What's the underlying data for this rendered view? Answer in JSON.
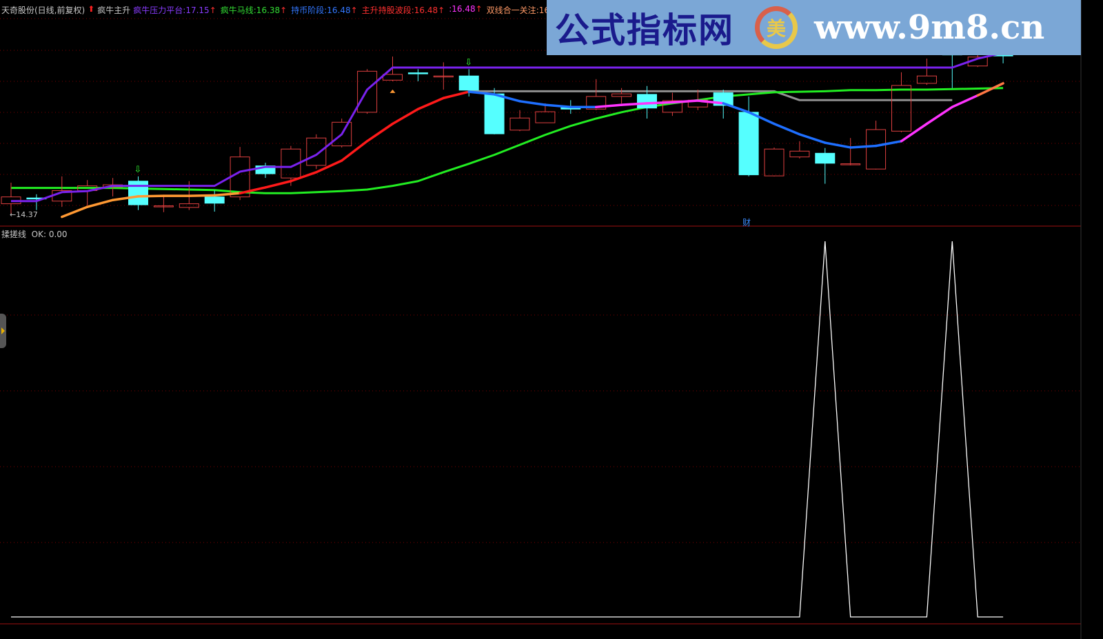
{
  "header": {
    "stock": "天奇股份(日线,前复权)",
    "indicator": "疯牛主升",
    "items": [
      {
        "label": "疯牛压力平台",
        "value": "17.15",
        "color": "#8a3cff"
      },
      {
        "label": "疯牛马线",
        "value": "16.38",
        "color": "#33dd33"
      },
      {
        "label": "持币阶段",
        "value": "16.48",
        "color": "#3377ff"
      },
      {
        "label": "主升持股波段",
        "value": "16.48",
        "color": "#ff3030"
      },
      {
        "label": "",
        "value": "16.48",
        "color": "#ff33ff"
      },
      {
        "label": "双线合一关注",
        "value": "16.4",
        "color": "#ff9966"
      }
    ],
    "arrow_up": "↑"
  },
  "watermark": {
    "cn": "公式指标网",
    "logo": "美",
    "url": "www.9m8.cn"
  },
  "low_label": "←14.37",
  "event_marker": "财",
  "sub_panel": {
    "title": "揉搓线",
    "readout": "OK: 0.00"
  },
  "colors": {
    "up": "#e04040",
    "down": "#55ffff",
    "grid": "#800000",
    "platform": "#7a22ee",
    "horse": "#22ee22",
    "gray": "#909090"
  },
  "chart_data": [
    {
      "type": "candlestick",
      "title": "天奇股份(日线,前复权)",
      "ohlc": [
        [
          14.56,
          14.69,
          14.96,
          14.37
        ],
        [
          14.67,
          14.66,
          14.74,
          14.44
        ],
        [
          14.61,
          14.81,
          15.08,
          14.5
        ],
        [
          14.81,
          14.9,
          15.01,
          14.53
        ],
        [
          14.88,
          14.92,
          15.05,
          14.7
        ],
        [
          14.99,
          14.54,
          15.08,
          14.44
        ],
        [
          14.52,
          14.52,
          14.7,
          14.4
        ],
        [
          14.49,
          14.56,
          14.99,
          14.44
        ],
        [
          14.69,
          14.57,
          14.81,
          14.41
        ],
        [
          14.69,
          15.45,
          15.64,
          14.63
        ],
        [
          15.28,
          15.13,
          15.34,
          15.05
        ],
        [
          15.05,
          15.6,
          15.66,
          14.9
        ],
        [
          15.29,
          15.81,
          15.88,
          15.22
        ],
        [
          15.66,
          16.11,
          16.18,
          15.63
        ],
        [
          16.3,
          17.08,
          17.12,
          16.27
        ],
        [
          16.91,
          17.02,
          17.36,
          16.89
        ],
        [
          17.05,
          17.05,
          17.12,
          16.89
        ],
        [
          16.99,
          16.99,
          17.25,
          16.73
        ],
        [
          16.99,
          16.72,
          17.12,
          16.6
        ],
        [
          16.65,
          15.89,
          16.76,
          15.88
        ],
        [
          15.96,
          16.19,
          16.34,
          15.94
        ],
        [
          16.1,
          16.31,
          16.47,
          16.1
        ],
        [
          16.4,
          16.36,
          16.53,
          16.27
        ],
        [
          16.36,
          16.6,
          16.93,
          16.34
        ],
        [
          16.6,
          16.65,
          16.76,
          16.47
        ],
        [
          16.64,
          16.38,
          16.8,
          16.18
        ],
        [
          16.3,
          16.52,
          16.67,
          16.23
        ],
        [
          16.4,
          16.53,
          16.73,
          16.34
        ],
        [
          16.67,
          16.43,
          16.73,
          16.18
        ],
        [
          16.3,
          15.11,
          16.6,
          15.08
        ],
        [
          15.09,
          15.6,
          15.63,
          15.08
        ],
        [
          15.45,
          15.56,
          15.75,
          15.42
        ],
        [
          15.52,
          15.33,
          15.62,
          14.94
        ],
        [
          15.32,
          15.32,
          15.81,
          15.29
        ],
        [
          15.22,
          15.97,
          16.14,
          15.21
        ],
        [
          15.94,
          16.81,
          17.06,
          15.92
        ],
        [
          16.85,
          16.99,
          17.32,
          16.82
        ],
        [
          17.41,
          17.39,
          17.52,
          16.76
        ],
        [
          17.18,
          17.35,
          17.41,
          17.16
        ],
        [
          17.39,
          17.39,
          17.52,
          17.23
        ]
      ],
      "lines": {
        "platform": [
          14.61,
          14.61,
          14.78,
          14.8,
          14.9,
          14.9,
          14.9,
          14.9,
          14.9,
          15.17,
          15.26,
          15.26,
          15.49,
          15.88,
          16.73,
          17.15,
          17.15,
          17.15,
          17.15,
          17.15,
          17.15,
          17.15,
          17.15,
          17.15,
          17.15,
          17.15,
          17.15,
          17.15,
          17.15,
          17.15,
          17.15,
          17.15,
          17.15,
          17.15,
          17.15,
          17.15,
          17.15,
          17.15,
          17.32,
          17.43
        ],
        "horse": [
          14.86,
          14.86,
          14.86,
          14.86,
          14.86,
          14.85,
          14.84,
          14.83,
          14.82,
          14.78,
          14.76,
          14.76,
          14.78,
          14.8,
          14.83,
          14.9,
          14.99,
          15.16,
          15.32,
          15.49,
          15.68,
          15.87,
          16.04,
          16.18,
          16.3,
          16.4,
          16.47,
          16.53,
          16.6,
          16.64,
          16.68,
          16.69,
          16.7,
          16.72,
          16.72,
          16.73,
          16.73,
          16.74,
          16.75,
          16.76
        ],
        "gray": [
          null,
          null,
          null,
          null,
          null,
          null,
          null,
          null,
          null,
          null,
          null,
          null,
          null,
          null,
          null,
          null,
          null,
          null,
          16.7,
          16.7,
          16.7,
          16.7,
          16.7,
          16.7,
          16.7,
          16.7,
          16.7,
          16.7,
          16.7,
          16.7,
          16.7,
          16.53,
          16.53,
          16.53,
          16.53,
          16.53,
          16.53,
          16.53,
          null,
          null
        ],
        "trend": [
          null,
          null,
          14.31,
          14.5,
          14.63,
          14.7,
          14.71,
          14.71,
          14.72,
          14.76,
          14.87,
          14.99,
          15.16,
          15.38,
          15.75,
          16.08,
          16.36,
          16.57,
          16.69,
          16.64,
          16.51,
          16.44,
          16.4,
          16.4,
          16.44,
          16.47,
          16.49,
          16.52,
          16.47,
          16.3,
          16.08,
          15.88,
          15.72,
          15.63,
          15.66,
          15.75,
          16.08,
          16.4,
          16.62,
          16.85
        ],
        "trend_colors": [
          "#ff9933",
          "#ff9933",
          "#ff9933",
          "#ff9933",
          "#ff9933",
          "#ff9933",
          "#ff9933",
          "#ff9933",
          "#ff9933",
          "#ff1a1a",
          "#ff1a1a",
          "#ff1a1a",
          "#ff1a1a",
          "#ff1a1a",
          "#ff1a1a",
          "#ff1a1a",
          "#ff1a1a",
          "#ff1a1a",
          "#1e6fff",
          "#1e6fff",
          "#1e6fff",
          "#1e6fff",
          "#1e6fff",
          "#ff33ff",
          "#ff33ff",
          "#ff33ff",
          "#ff33ff",
          "#ff33ff",
          "#1e6fff",
          "#1e6fff",
          "#1e6fff",
          "#1e6fff",
          "#1e6fff",
          "#1e6fff",
          "#1e6fff",
          "#ff33ff",
          "#ff33ff",
          "#ff33ff",
          "#ff7744",
          "#ff2222"
        ]
      },
      "signals": {
        "down_arrows": [
          5,
          18
        ],
        "triangle": [
          15
        ],
        "event": [
          29
        ]
      },
      "low": 14.37
    },
    {
      "type": "line",
      "title": "揉搓线",
      "values": [
        0,
        0,
        0,
        0,
        0,
        0,
        0,
        0,
        0,
        0,
        0,
        0,
        0,
        0,
        0,
        0,
        0,
        0,
        0,
        0,
        0,
        0,
        0,
        0,
        0,
        0,
        0,
        0,
        0,
        0,
        0,
        0,
        1,
        0,
        0,
        0,
        0,
        1,
        0,
        0
      ],
      "ylim": [
        0,
        1
      ],
      "color": "#ffffff"
    }
  ]
}
